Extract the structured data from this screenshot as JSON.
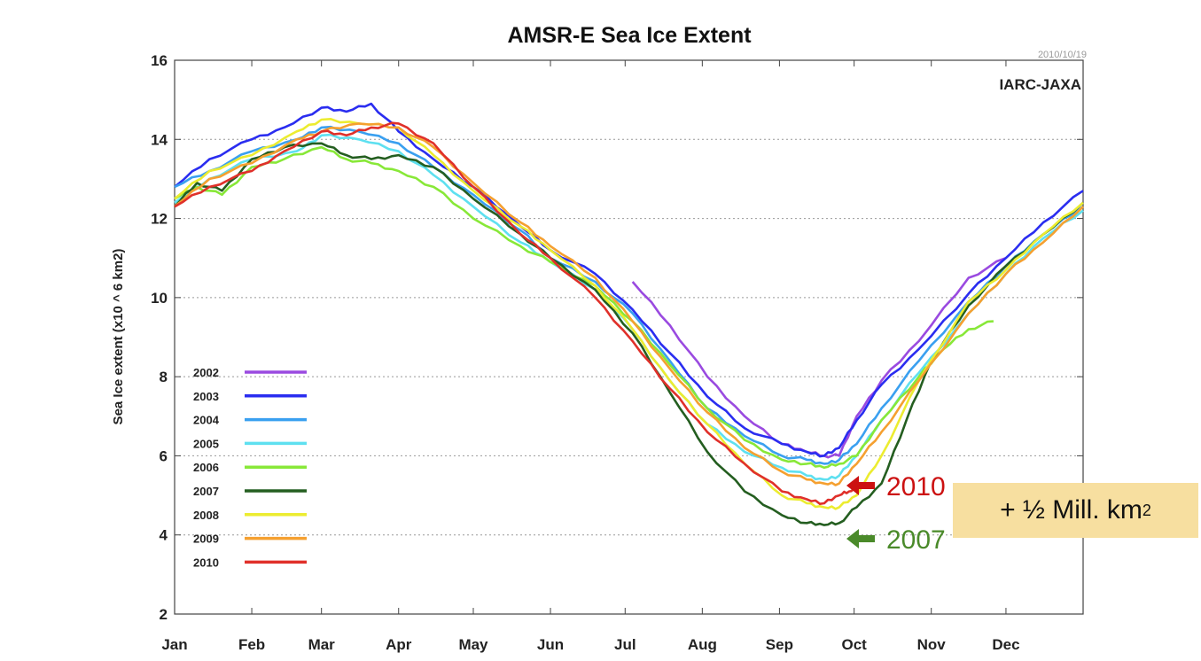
{
  "chart_data": {
    "type": "line",
    "title": "AMSR-E Sea Ice Extent",
    "date_stamp": "2010/10/19",
    "source": "IARC-JAXA",
    "xlabel": "",
    "ylabel": "Sea Ice extent (x10 ^ 6 km2)",
    "ylim": [
      2,
      16
    ],
    "yticks": [
      "2",
      "4",
      "6",
      "8",
      "10",
      "12",
      "14",
      "16"
    ],
    "xlim": [
      1,
      366
    ],
    "xticks": [
      {
        "label": "Jan",
        "day": 1
      },
      {
        "label": "Feb",
        "day": 32
      },
      {
        "label": "Mar",
        "day": 60
      },
      {
        "label": "Apr",
        "day": 91
      },
      {
        "label": "May",
        "day": 121
      },
      {
        "label": "Jun",
        "day": 152
      },
      {
        "label": "Jul",
        "day": 182
      },
      {
        "label": "Aug",
        "day": 213
      },
      {
        "label": "Sep",
        "day": 244
      },
      {
        "label": "Oct",
        "day": 274
      },
      {
        "label": "Nov",
        "day": 305
      },
      {
        "label": "Dec",
        "day": 335
      }
    ],
    "grid": "horizontal dotted",
    "legend_position": "bottom-left",
    "series": [
      {
        "name": "2002",
        "color": "#9a4ae0",
        "x": [
          185,
          200,
          215,
          230,
          245,
          255,
          262,
          268,
          275,
          285,
          300,
          320,
          335
        ],
        "y": [
          10.4,
          9.3,
          8.0,
          7.0,
          6.3,
          6.1,
          6.0,
          6.0,
          7.0,
          7.9,
          8.9,
          10.5,
          11.0
        ]
      },
      {
        "name": "2003",
        "color": "#2a2df0",
        "x": [
          1,
          15,
          32,
          45,
          60,
          70,
          80,
          91,
          105,
          121,
          140,
          152,
          170,
          185,
          200,
          215,
          230,
          245,
          255,
          262,
          268,
          275,
          285,
          300,
          320,
          335,
          350,
          366
        ],
        "y": [
          12.8,
          13.5,
          14.0,
          14.3,
          14.8,
          14.7,
          14.9,
          14.2,
          13.5,
          12.8,
          11.8,
          11.2,
          10.6,
          9.7,
          8.6,
          7.5,
          6.7,
          6.3,
          6.1,
          6.0,
          6.2,
          6.9,
          7.8,
          8.7,
          10.1,
          11.0,
          11.9,
          12.7
        ]
      },
      {
        "name": "2004",
        "color": "#3aa0f0",
        "x": [
          1,
          15,
          32,
          50,
          60,
          75,
          91,
          105,
          121,
          140,
          152,
          170,
          185,
          200,
          215,
          230,
          245,
          255,
          262,
          268,
          275,
          285,
          300,
          320,
          335,
          350,
          366
        ],
        "y": [
          12.8,
          13.2,
          13.7,
          14.0,
          14.3,
          14.2,
          13.9,
          13.3,
          12.6,
          11.7,
          11.0,
          10.4,
          9.6,
          8.4,
          7.2,
          6.5,
          6.0,
          5.9,
          5.8,
          5.9,
          6.3,
          7.2,
          8.4,
          9.9,
          10.8,
          11.6,
          12.3
        ]
      },
      {
        "name": "2005",
        "color": "#5ee0f0",
        "x": [
          1,
          15,
          32,
          50,
          60,
          75,
          91,
          105,
          121,
          140,
          152,
          170,
          185,
          200,
          215,
          230,
          245,
          255,
          262,
          268,
          275,
          285,
          300,
          320,
          335,
          350,
          366
        ],
        "y": [
          12.4,
          13.0,
          13.5,
          13.7,
          14.1,
          14.0,
          13.7,
          13.1,
          12.3,
          11.4,
          10.9,
          10.2,
          9.2,
          7.9,
          6.8,
          6.1,
          5.7,
          5.5,
          5.4,
          5.5,
          6.0,
          6.9,
          8.1,
          9.6,
          10.6,
          11.5,
          12.2
        ]
      },
      {
        "name": "2006",
        "color": "#88e838",
        "x": [
          1,
          10,
          20,
          32,
          45,
          60,
          70,
          80,
          91,
          105,
          121,
          140,
          152,
          170,
          185,
          200,
          215,
          230,
          245,
          255,
          262,
          268,
          275,
          285,
          300,
          310,
          320,
          330
        ],
        "y": [
          12.5,
          12.8,
          12.6,
          13.3,
          13.5,
          13.8,
          13.5,
          13.4,
          13.2,
          12.8,
          12.0,
          11.3,
          10.9,
          10.3,
          9.4,
          8.3,
          7.2,
          6.4,
          5.9,
          5.8,
          5.7,
          5.8,
          6.0,
          6.9,
          8.0,
          8.7,
          9.2,
          9.4
        ]
      },
      {
        "name": "2007",
        "color": "#245e20",
        "x": [
          1,
          10,
          20,
          32,
          45,
          60,
          70,
          80,
          91,
          105,
          121,
          140,
          152,
          170,
          185,
          200,
          215,
          230,
          245,
          255,
          262,
          268,
          275,
          285,
          295,
          305,
          320,
          335,
          350,
          366
        ],
        "y": [
          12.3,
          12.9,
          12.7,
          13.5,
          13.8,
          13.9,
          13.6,
          13.5,
          13.6,
          13.3,
          12.5,
          11.6,
          11.0,
          10.2,
          9.1,
          7.6,
          6.1,
          5.1,
          4.5,
          4.3,
          4.25,
          4.3,
          4.7,
          5.3,
          6.9,
          8.4,
          9.8,
          10.8,
          11.6,
          12.4
        ]
      },
      {
        "name": "2008",
        "color": "#ecec30",
        "x": [
          1,
          15,
          32,
          50,
          60,
          75,
          91,
          105,
          121,
          140,
          152,
          170,
          185,
          200,
          215,
          230,
          245,
          255,
          262,
          268,
          275,
          285,
          300,
          320,
          335,
          350,
          366
        ],
        "y": [
          12.5,
          13.2,
          13.6,
          14.2,
          14.5,
          14.4,
          14.3,
          13.6,
          12.7,
          11.8,
          11.2,
          10.3,
          9.2,
          7.9,
          6.8,
          5.8,
          5.0,
          4.8,
          4.7,
          4.7,
          5.0,
          6.0,
          7.9,
          9.9,
          10.7,
          11.6,
          12.4
        ]
      },
      {
        "name": "2009",
        "color": "#f5a030",
        "x": [
          1,
          15,
          32,
          50,
          60,
          75,
          91,
          105,
          121,
          140,
          152,
          170,
          185,
          200,
          215,
          230,
          245,
          255,
          262,
          268,
          275,
          285,
          300,
          320,
          335,
          350,
          366
        ],
        "y": [
          12.3,
          13.0,
          13.4,
          14.0,
          14.2,
          14.4,
          14.3,
          13.8,
          12.9,
          11.9,
          11.3,
          10.5,
          9.4,
          8.2,
          7.1,
          6.2,
          5.6,
          5.4,
          5.3,
          5.3,
          5.8,
          6.6,
          7.9,
          9.6,
          10.6,
          11.4,
          12.3
        ]
      },
      {
        "name": "2010",
        "color": "#e0302a",
        "x": [
          1,
          15,
          32,
          45,
          60,
          70,
          80,
          91,
          105,
          121,
          140,
          152,
          170,
          185,
          200,
          215,
          230,
          245,
          255,
          262,
          268,
          272,
          276
        ],
        "y": [
          12.3,
          12.8,
          13.2,
          13.7,
          14.2,
          14.1,
          14.3,
          14.4,
          13.9,
          12.8,
          11.6,
          11.0,
          10.0,
          8.9,
          7.7,
          6.6,
          5.8,
          5.1,
          4.9,
          4.8,
          5.0,
          5.1,
          5.3
        ]
      }
    ],
    "annotations": [
      {
        "text": "2010",
        "color": "#cc1111",
        "points_to_series": "2010"
      },
      {
        "text": "2007",
        "color": "#4a8a2a",
        "points_to_series": "2007"
      }
    ]
  },
  "callout": {
    "prefix": "+ ½ Mill. km",
    "superscript": "2"
  }
}
